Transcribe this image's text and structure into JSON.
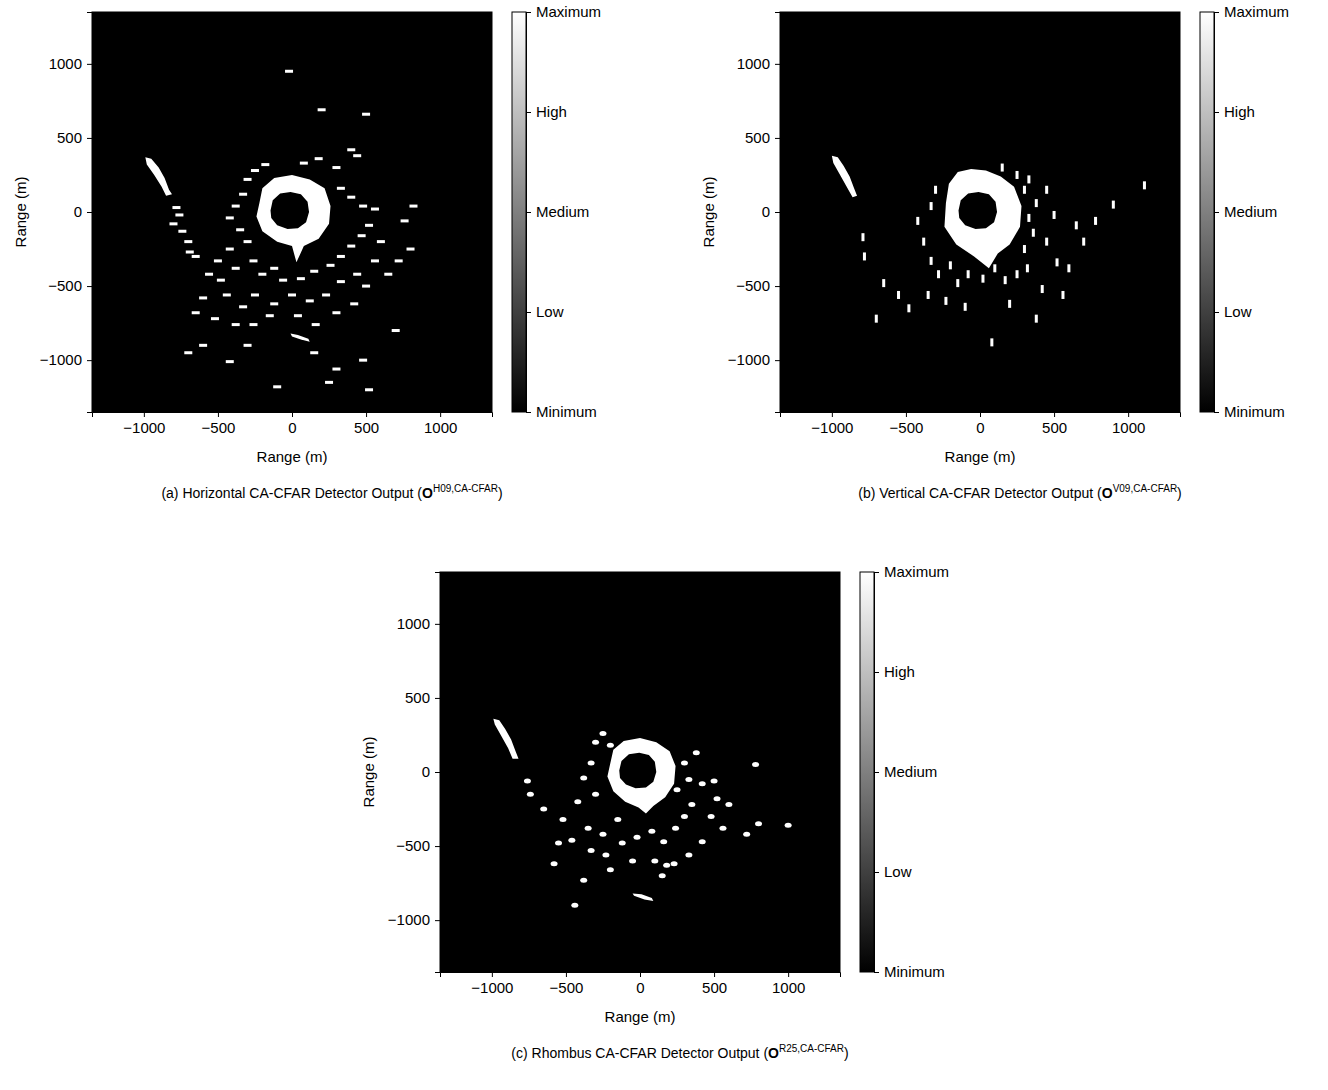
{
  "chart_data": [
    {
      "type": "image",
      "caption": [
        "(a) Horizontal CA-CFAR Detector Output (",
        "O",
        "H09,CA-CFAR",
        ")"
      ],
      "xlabel": "Range (m)",
      "ylabel": "Range (m)",
      "xlim": [
        -1350,
        1350
      ],
      "ylim": [
        -1350,
        1350
      ],
      "xticks": [
        {
          "value": -1000,
          "label": "−1000"
        },
        {
          "value": -500,
          "label": "−500"
        },
        0,
        500,
        1000
      ],
      "yticks": [
        {
          "value": -1000,
          "label": "−1000"
        },
        {
          "value": -500,
          "label": "−500"
        },
        0,
        500,
        1000
      ],
      "marker": "dash-h",
      "colorbar": {
        "range": [
          0,
          1
        ],
        "colors": [
          "#000000",
          "#ffffff"
        ],
        "ticks": [
          {
            "value": 0,
            "label": "Minimum"
          },
          {
            "value": 0.25,
            "label": "Low"
          },
          {
            "value": 0.5,
            "label": "Medium"
          },
          {
            "value": 0.75,
            "label": "High"
          },
          {
            "value": 1,
            "label": "Maximum"
          }
        ]
      },
      "regions": [
        {
          "value": 1,
          "rings": [
            {
              "x": [
                -990,
                -950,
                -900,
                -860,
                -830,
                -810,
                -850,
                -880,
                -930,
                -980
              ],
              "y": [
                370,
                360,
                300,
                230,
                150,
                120,
                110,
                170,
                250,
                320
              ]
            }
          ]
        },
        {
          "value": 1,
          "rings": [
            {
              "x": [
                -220,
                -200,
                -120,
                0,
                120,
                220,
                260,
                250,
                180,
                80,
                30,
                0,
                -100,
                -200,
                -240
              ],
              "y": [
                60,
                160,
                230,
                250,
                220,
                160,
                40,
                -80,
                -180,
                -230,
                -340,
                -230,
                -200,
                -130,
                -30
              ]
            },
            {
              "x": [
                -145,
                -130,
                -80,
                -10,
                60,
                105,
                115,
                95,
                40,
                -30,
                -100,
                -140
              ],
              "y": [
                10,
                80,
                125,
                135,
                120,
                70,
                0,
                -70,
                -110,
                -115,
                -90,
                -40
              ]
            }
          ]
        },
        {
          "value": 1,
          "rings": [
            {
              "x": [
                -10,
                40,
                110,
                120,
                60,
                0
              ],
              "y": [
                -820,
                -830,
                -855,
                -875,
                -860,
                -840
              ]
            }
          ]
        }
      ],
      "points": {
        "value": 1,
        "x": [
          -780,
          -760,
          -800,
          -740,
          -700,
          -690,
          -650,
          -300,
          -250,
          -180,
          80,
          180,
          300,
          400,
          440,
          330,
          400,
          480,
          560,
          -330,
          -380,
          -420,
          -350,
          -300,
          -420,
          -500,
          -560,
          -480,
          -380,
          -260,
          -200,
          -120,
          -60,
          60,
          150,
          260,
          330,
          400,
          470,
          520,
          600,
          560,
          440,
          330,
          230,
          120,
          0,
          -120,
          -250,
          -330,
          -440,
          -600,
          -650,
          -520,
          -380,
          -260,
          -150,
          40,
          160,
          300,
          420,
          500,
          650,
          720,
          800,
          760,
          820,
          -700,
          -600,
          -420,
          -300,
          150,
          300,
          480,
          520,
          250,
          200,
          500,
          -20,
          700,
          -100
        ],
        "y": [
          30,
          -20,
          -80,
          -130,
          -200,
          -270,
          -300,
          220,
          280,
          320,
          330,
          360,
          300,
          420,
          380,
          160,
          100,
          40,
          20,
          120,
          40,
          -40,
          -120,
          -200,
          -250,
          -330,
          -420,
          -460,
          -380,
          -330,
          -420,
          -380,
          -460,
          -450,
          -400,
          -360,
          -300,
          -230,
          -160,
          -90,
          -200,
          -330,
          -420,
          -470,
          -560,
          -600,
          -560,
          -620,
          -560,
          -640,
          -560,
          -580,
          -680,
          -720,
          -760,
          -760,
          -700,
          -700,
          -760,
          -680,
          -620,
          -500,
          -420,
          -330,
          -250,
          -60,
          40,
          -950,
          -900,
          -1010,
          -900,
          -950,
          -1060,
          -1000,
          -1200,
          -1150,
          690,
          660,
          950,
          -800,
          -1180
        ]
      }
    },
    {
      "type": "image",
      "caption": [
        "(b) Vertical CA-CFAR Detector Output (",
        "O",
        "V09,CA-CFAR",
        ")"
      ],
      "xlabel": "Range (m)",
      "ylabel": "Range (m)",
      "xlim": [
        -1350,
        1350
      ],
      "ylim": [
        -1350,
        1350
      ],
      "xticks": [
        {
          "value": -1000,
          "label": "−1000"
        },
        {
          "value": -500,
          "label": "−500"
        },
        0,
        500,
        1000
      ],
      "yticks": [
        {
          "value": -1000,
          "label": "−1000"
        },
        {
          "value": -500,
          "label": "−500"
        },
        0,
        500,
        1000
      ],
      "marker": "dash-v",
      "colorbar": {
        "range": [
          0,
          1
        ],
        "colors": [
          "#000000",
          "#ffffff"
        ],
        "ticks": [
          {
            "value": 0,
            "label": "Minimum"
          },
          {
            "value": 0.25,
            "label": "Low"
          },
          {
            "value": 0.5,
            "label": "Medium"
          },
          {
            "value": 0.75,
            "label": "High"
          },
          {
            "value": 1,
            "label": "Maximum"
          }
        ]
      },
      "regions": [
        {
          "value": 1,
          "rings": [
            {
              "x": [
                -1000,
                -960,
                -920,
                -880,
                -850,
                -830,
                -860,
                -900,
                -950,
                -990
              ],
              "y": [
                380,
                370,
                310,
                240,
                160,
                110,
                100,
                170,
                260,
                330
              ]
            }
          ]
        },
        {
          "value": 1,
          "rings": [
            {
              "x": [
                -230,
                -210,
                -150,
                -60,
                40,
                140,
                230,
                280,
                270,
                200,
                120,
                60,
                -40,
                -160,
                -240
              ],
              "y": [
                60,
                190,
                270,
                290,
                280,
                240,
                170,
                40,
                -100,
                -220,
                -280,
                -380,
                -300,
                -220,
                -100
              ]
            },
            {
              "x": [
                -145,
                -130,
                -80,
                -10,
                60,
                105,
                115,
                95,
                40,
                -30,
                -100,
                -140
              ],
              "y": [
                10,
                80,
                125,
                135,
                120,
                70,
                0,
                -70,
                -110,
                -115,
                -90,
                -40
              ]
            }
          ]
        }
      ],
      "points": {
        "value": 1,
        "x": [
          -420,
          -380,
          -330,
          -280,
          -200,
          -150,
          -80,
          20,
          100,
          170,
          250,
          320,
          300,
          360,
          330,
          380,
          300,
          330,
          250,
          150,
          -300,
          -330,
          450,
          500,
          450,
          520,
          420,
          600,
          700,
          780,
          900,
          1110,
          -550,
          -650,
          -700,
          -480,
          -350,
          -230,
          -100,
          80,
          200,
          380,
          560,
          650,
          -780,
          -790
        ],
        "y": [
          -60,
          -200,
          -330,
          -420,
          -360,
          -480,
          -420,
          -450,
          -380,
          -460,
          -420,
          -380,
          -250,
          -140,
          -40,
          60,
          150,
          220,
          250,
          300,
          150,
          40,
          150,
          -20,
          -200,
          -340,
          -520,
          -380,
          -200,
          -60,
          50,
          180,
          -560,
          -480,
          -720,
          -650,
          -560,
          -600,
          -640,
          -880,
          -620,
          -720,
          -560,
          -90,
          -300,
          -170
        ]
      }
    },
    {
      "type": "image",
      "caption": [
        "(c) Rhombus CA-CFAR Detector Output (",
        "O",
        "R25,CA-CFAR",
        ")"
      ],
      "xlabel": "Range (m)",
      "ylabel": "Range (m)",
      "xlim": [
        -1350,
        1350
      ],
      "ylim": [
        -1350,
        1350
      ],
      "xticks": [
        {
          "value": -1000,
          "label": "−1000"
        },
        {
          "value": -500,
          "label": "−500"
        },
        0,
        500,
        1000
      ],
      "yticks": [
        {
          "value": -1000,
          "label": "−1000"
        },
        {
          "value": -500,
          "label": "−500"
        },
        0,
        500,
        1000
      ],
      "marker": "ellipse",
      "colorbar": {
        "range": [
          0,
          1
        ],
        "colors": [
          "#000000",
          "#ffffff"
        ],
        "ticks": [
          {
            "value": 0,
            "label": "Minimum"
          },
          {
            "value": 0.25,
            "label": "Low"
          },
          {
            "value": 0.5,
            "label": "Medium"
          },
          {
            "value": 0.75,
            "label": "High"
          },
          {
            "value": 1,
            "label": "Maximum"
          }
        ]
      },
      "regions": [
        {
          "value": 1,
          "rings": [
            {
              "x": [
                -990,
                -950,
                -910,
                -870,
                -840,
                -820,
                -860,
                -890,
                -940,
                -980
              ],
              "y": [
                360,
                350,
                290,
                220,
                140,
                90,
                90,
                160,
                250,
                320
              ]
            }
          ]
        },
        {
          "value": 1,
          "rings": [
            {
              "x": [
                -200,
                -180,
                -110,
                0,
                110,
                200,
                240,
                230,
                170,
                90,
                40,
                -10,
                -100,
                -180,
                -220
              ],
              "y": [
                60,
                150,
                210,
                230,
                200,
                140,
                40,
                -80,
                -170,
                -230,
                -280,
                -240,
                -200,
                -130,
                -30
              ]
            },
            {
              "x": [
                -140,
                -125,
                -75,
                -5,
                60,
                100,
                110,
                90,
                40,
                -30,
                -95,
                -135
              ],
              "y": [
                10,
                75,
                120,
                130,
                115,
                70,
                0,
                -65,
                -105,
                -110,
                -85,
                -40
              ]
            }
          ]
        },
        {
          "value": 1,
          "rings": [
            {
              "x": [
                -50,
                10,
                80,
                90,
                30,
                -40
              ],
              "y": [
                -820,
                -825,
                -850,
                -870,
                -860,
                -835
              ]
            }
          ]
        }
      ],
      "points": {
        "value": 1,
        "x": [
          -300,
          -250,
          -200,
          -330,
          -380,
          -300,
          -420,
          -520,
          -460,
          -580,
          -550,
          -350,
          -250,
          -150,
          -120,
          -20,
          80,
          160,
          240,
          300,
          350,
          250,
          330,
          300,
          380,
          420,
          500,
          520,
          600,
          480,
          560,
          420,
          330,
          230,
          100,
          -50,
          -230,
          -330,
          -440,
          -200,
          180,
          780,
          800,
          1000,
          720,
          -650,
          -760,
          -740,
          150,
          -380
        ],
        "y": [
          200,
          260,
          180,
          60,
          -40,
          -150,
          -200,
          -320,
          -460,
          -620,
          -480,
          -380,
          -420,
          -320,
          -480,
          -440,
          -400,
          -470,
          -380,
          -300,
          -220,
          -120,
          -50,
          60,
          130,
          -80,
          -60,
          -180,
          -220,
          -300,
          -380,
          -470,
          -560,
          -620,
          -600,
          -600,
          -560,
          -530,
          -900,
          -660,
          -630,
          50,
          -350,
          -360,
          -420,
          -250,
          -60,
          -150,
          -700,
          -730
        ]
      }
    }
  ]
}
